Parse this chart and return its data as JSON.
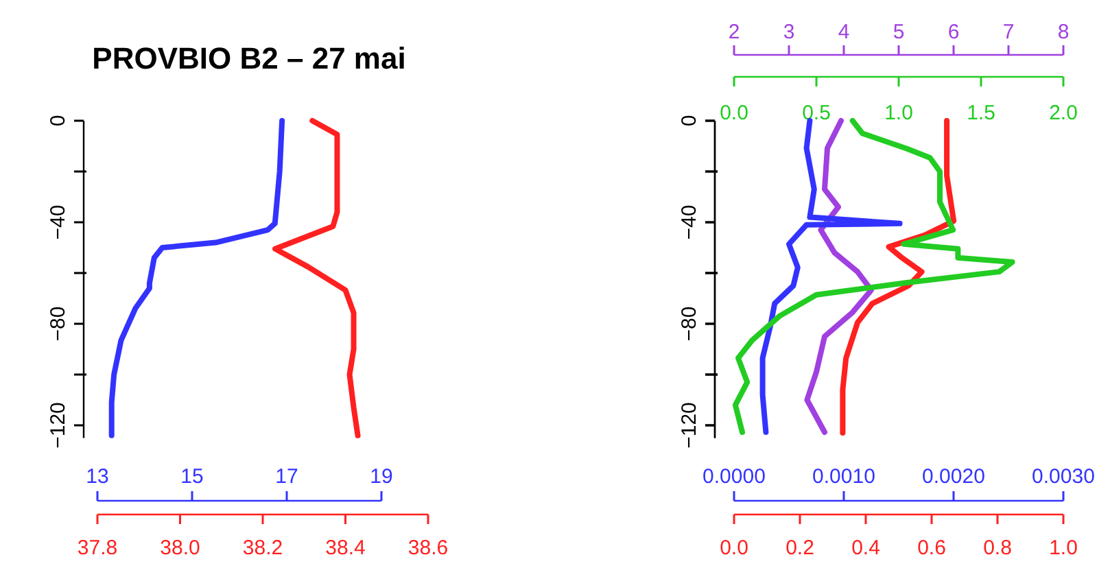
{
  "chart_data": [
    {
      "type": "line",
      "title": "PROVBIO B2 – 27 mai",
      "ylim": [
        -125,
        0
      ],
      "yticks": [
        0,
        {
          "value": -20,
          "label": null
        },
        -40,
        {
          "value": -60,
          "label": null
        },
        -80,
        {
          "value": -100,
          "label": null
        },
        -120
      ],
      "xlim": [
        37.8,
        38.6
      ],
      "xticks": [
        37.8,
        {
          "value": 38,
          "label": "38.0"
        },
        38.2,
        38.4,
        38.6
      ],
      "x2lim": [
        13,
        19
      ],
      "x2ticks": [
        13,
        15,
        17,
        19
      ],
      "series": [
        {
          "color": "#3333ff",
          "axis": "x2",
          "x": [
            16.9,
            16.85,
            16.75,
            16.6,
            15.5,
            14.37,
            14.2,
            14.1,
            14.1,
            13.8,
            13.5,
            13.35,
            13.3,
            13.3
          ],
          "values": [
            0,
            -20,
            -40.5,
            -43,
            -48,
            -50,
            -54,
            -64,
            -66,
            -74,
            -86.5,
            -100,
            -111,
            -124
          ]
        },
        {
          "color": "#ff2020",
          "x": [
            38.32,
            38.38,
            38.38,
            38.37,
            38.23,
            38.31,
            38.4,
            38.42,
            38.42,
            38.41,
            38.42,
            38.43
          ],
          "values": [
            0,
            -5.4,
            -36,
            -41.6,
            -50.5,
            -57.6,
            -66.7,
            -75.7,
            -90,
            -100,
            -113,
            -124
          ]
        }
      ]
    },
    {
      "type": "line",
      "ylim": [
        -125,
        0
      ],
      "yticks": [
        0,
        {
          "value": -20,
          "label": null
        },
        -40,
        {
          "value": -60,
          "label": null
        },
        -80,
        {
          "value": -100,
          "label": null
        },
        -120
      ],
      "xlim": [
        0,
        1
      ],
      "xticks": [
        {
          "value": 0,
          "label": "0.0"
        },
        0.2,
        0.4,
        0.6,
        0.8,
        {
          "value": 1,
          "label": "1.0"
        }
      ],
      "x2lim": [
        2,
        8
      ],
      "x2ticks": [
        2,
        3,
        4,
        5,
        6,
        7,
        8
      ],
      "series": [
        {
          "color": "#ff2020",
          "x": [
            0.646,
            0.646,
            0.667,
            0.58,
            0.47,
            0.51,
            0.57,
            0.53,
            0.42,
            0.375,
            0.34,
            0.33,
            0.33
          ],
          "values": [
            0,
            -21.6,
            -39.5,
            -45,
            -49.7,
            -54,
            -59.5,
            -65,
            -72,
            -79.5,
            -93.5,
            -106,
            -123
          ]
        },
        {
          "color": "#a040e0",
          "axis": "x2",
          "x": [
            3.95,
            3.7,
            3.65,
            3.9,
            3.58,
            3.83,
            4.25,
            4.5,
            4.15,
            3.65,
            3.5,
            3.33,
            3.65
          ],
          "values": [
            0,
            -10.8,
            -27,
            -34,
            -43,
            -52,
            -59.5,
            -66.7,
            -75.7,
            -85,
            -99,
            -110,
            -122.7
          ]
        }
      ]
    },
    {
      "type": "line",
      "tick_labels": "x",
      "ylim": [
        -125,
        0
      ],
      "yticks": [
        0,
        {
          "value": -20,
          "label": null
        },
        -40,
        {
          "value": -60,
          "label": null
        },
        -80,
        {
          "value": -100,
          "label": null
        },
        -120
      ],
      "xlim": [
        0,
        0.003
      ],
      "xticks": [
        {
          "value": 0,
          "label": "0.0000"
        },
        {
          "value": 0.001,
          "label": "0.0010"
        },
        {
          "value": 0.002,
          "label": "0.0020"
        },
        {
          "value": 0.003,
          "label": "0.0030"
        }
      ],
      "x2lim": [
        0,
        2
      ],
      "x2ticks": [
        {
          "value": 0,
          "label": "0.0"
        },
        0.5,
        {
          "value": 1,
          "label": "1.0"
        },
        1.5,
        {
          "value": 2,
          "label": "2.0"
        }
      ],
      "series": [
        {
          "color": "#3333ff",
          "x": [
            0.00069,
            0.00066,
            0.00073,
            0.00069,
            0.00151,
            0.00066,
            0.0005,
            0.00058,
            0.00054,
            0.00037,
            0.00033,
            0.00026,
            0.00026,
            0.00029
          ],
          "values": [
            0,
            -10.8,
            -27,
            -38,
            -40.5,
            -41,
            -48.6,
            -57.8,
            -65,
            -72,
            -81,
            -93.5,
            -108,
            -122.7
          ]
        },
        {
          "color": "#22cc22",
          "axis": "x2",
          "x": [
            0.72,
            0.78,
            1.05,
            1.19,
            1.25,
            1.25,
            1.33,
            1.03,
            1.36,
            1.36,
            1.69,
            1.61,
            1.05,
            0.5,
            0.275,
            0.11,
            0.025,
            0.08,
            0.008,
            0.05
          ],
          "values": [
            0,
            -5,
            -11,
            -14.6,
            -20,
            -32,
            -43,
            -48.6,
            -50.5,
            -54,
            -55.7,
            -59.5,
            -63.8,
            -68.6,
            -77,
            -86.5,
            -93.5,
            -103,
            -112,
            -122.7
          ]
        }
      ]
    }
  ]
}
